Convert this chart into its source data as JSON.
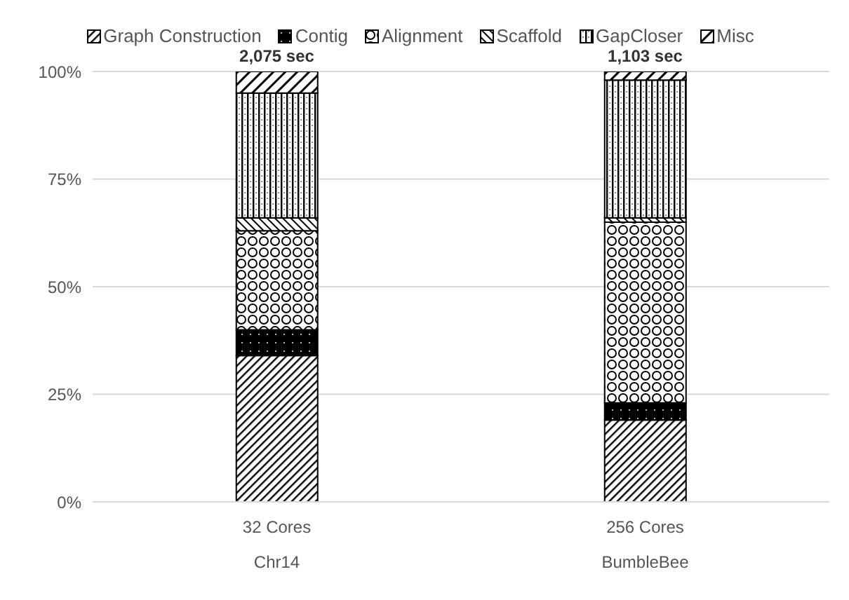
{
  "chart_data": {
    "type": "bar",
    "stacked": true,
    "categories": [
      "32 Cores",
      "256 Cores"
    ],
    "series": [
      {
        "name": "Graph Construction",
        "color": "#000000",
        "values": [
          34,
          19
        ]
      },
      {
        "name": "Contig",
        "color": "#000000",
        "values": [
          6,
          4
        ]
      },
      {
        "name": "Alignment",
        "color": "#000000",
        "values": [
          23,
          42
        ]
      },
      {
        "name": "Scaffold",
        "color": "#000000",
        "values": [
          3,
          1
        ]
      },
      {
        "name": "GapCloser",
        "color": "#000000",
        "values": [
          29,
          32
        ]
      },
      {
        "name": "Misc",
        "color": "#000000",
        "values": [
          5,
          2
        ]
      }
    ],
    "annotations": [
      "Chr14",
      "BumbleBee",
      {
        "text": "2,075 sec",
        "x": "32 Cores",
        "y": 100
      },
      {
        "text": "1,103 sec",
        "x": "256 Cores",
        "y": 100
      }
    ],
    "ylim": [
      0,
      100
    ],
    "yticks": [
      {
        "value": 0,
        "label": "0%"
      },
      {
        "value": 25,
        "label": "25%"
      },
      {
        "value": 50,
        "label": "50%"
      },
      {
        "value": 75,
        "label": "75%"
      },
      {
        "value": 100,
        "label": "100%"
      }
    ],
    "grid": "y",
    "legend": "top"
  }
}
